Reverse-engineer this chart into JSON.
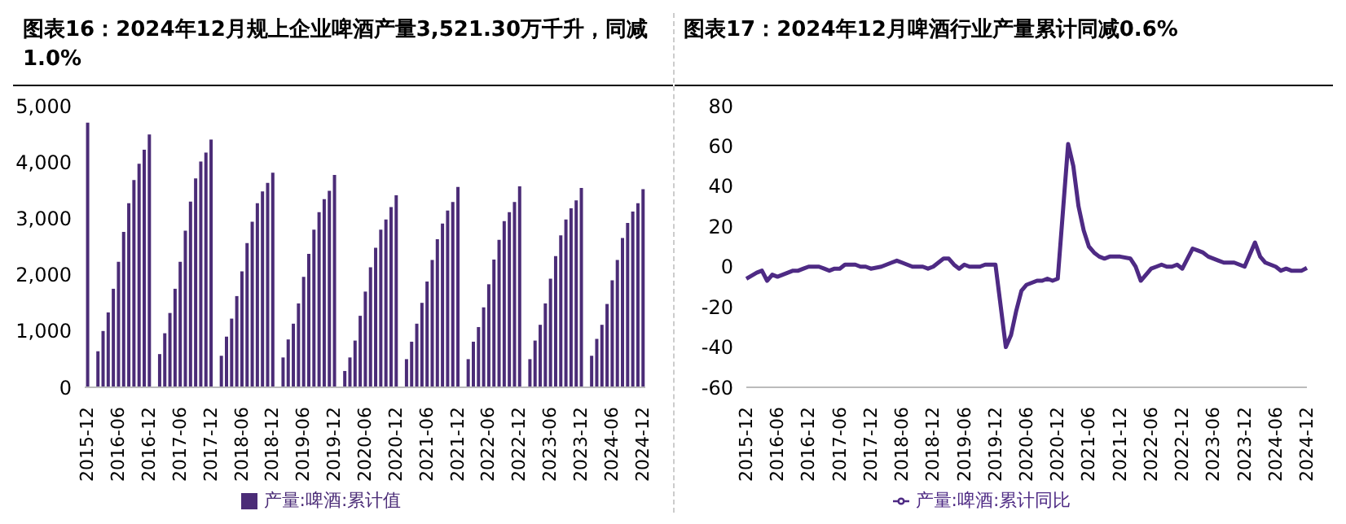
{
  "chart_data": [
    {
      "type": "bar",
      "title": "图表16：2024年12月规上企业啤酒产量3,521.30万千升，同减1.0%",
      "categories": [
        "2015-12",
        null,
        null,
        null,
        null,
        null,
        "2016-06",
        null,
        null,
        null,
        null,
        null,
        "2016-12",
        null,
        null,
        null,
        null,
        null,
        "2017-06",
        null,
        null,
        null,
        null,
        null,
        "2017-12",
        null,
        null,
        null,
        null,
        null,
        "2018-06",
        null,
        null,
        null,
        null,
        null,
        "2018-12",
        null,
        null,
        null,
        null,
        null,
        "2019-06",
        null,
        null,
        null,
        null,
        null,
        "2019-12",
        null,
        null,
        null,
        null,
        null,
        "2020-06",
        null,
        null,
        null,
        null,
        null,
        "2020-12",
        null,
        null,
        null,
        null,
        null,
        "2021-06",
        null,
        null,
        null,
        null,
        null,
        "2021-12",
        null,
        null,
        null,
        null,
        null,
        "2022-06",
        null,
        null,
        null,
        null,
        null,
        "2022-12",
        null,
        null,
        null,
        null,
        null,
        "2023-06",
        null,
        null,
        null,
        null,
        null,
        "2023-12",
        null,
        null,
        null,
        null,
        null,
        "2024-06",
        null,
        null,
        null,
        null,
        null,
        "2024-12"
      ],
      "series": [
        {
          "name": "产量:啤酒:累计值",
          "color": "#4b2c77",
          "values": [
            4700,
            null,
            640,
            1000,
            1330,
            1750,
            2230,
            2760,
            3270,
            3680,
            3970,
            4220,
            4490,
            null,
            590,
            960,
            1320,
            1750,
            2230,
            2780,
            3300,
            3710,
            4010,
            4170,
            4400,
            null,
            560,
            900,
            1220,
            1620,
            2060,
            2560,
            2940,
            3270,
            3480,
            3630,
            3810,
            null,
            530,
            850,
            1130,
            1490,
            1960,
            2370,
            2800,
            3110,
            3340,
            3490,
            3770,
            null,
            290,
            530,
            830,
            1270,
            1700,
            2130,
            2480,
            2800,
            2980,
            3200,
            3410,
            null,
            500,
            810,
            1130,
            1500,
            1880,
            2260,
            2630,
            2910,
            3140,
            3290,
            3560,
            null,
            500,
            810,
            1070,
            1420,
            1830,
            2270,
            2620,
            2950,
            3110,
            3290,
            3570,
            null,
            500,
            830,
            1110,
            1490,
            1930,
            2330,
            2700,
            2980,
            3180,
            3320,
            3540,
            null,
            560,
            860,
            1110,
            1480,
            1900,
            2260,
            2650,
            2920,
            3120,
            3270,
            3520
          ]
        }
      ],
      "ylim": [
        0,
        5000
      ],
      "yticks": [
        0,
        {
          "value": 1000,
          "label": "1,000"
        },
        {
          "value": 2000,
          "label": "2,000"
        },
        {
          "value": 3000,
          "label": "3,000"
        },
        {
          "value": 4000,
          "label": "4,000"
        },
        {
          "value": 5000,
          "label": "5,000"
        }
      ],
      "grid": false,
      "legend": "bottom"
    },
    {
      "type": "line",
      "title": "图表17：2024年12月啤酒行业产量累计同减0.6%",
      "categories": [
        "2015-12",
        null,
        null,
        null,
        null,
        null,
        "2016-06",
        null,
        null,
        null,
        null,
        null,
        "2016-12",
        null,
        null,
        null,
        null,
        null,
        "2017-06",
        null,
        null,
        null,
        null,
        null,
        "2017-12",
        null,
        null,
        null,
        null,
        null,
        "2018-06",
        null,
        null,
        null,
        null,
        null,
        "2018-12",
        null,
        null,
        null,
        null,
        null,
        "2019-06",
        null,
        null,
        null,
        null,
        null,
        "2019-12",
        null,
        null,
        null,
        null,
        null,
        "2020-06",
        null,
        null,
        null,
        null,
        null,
        "2020-12",
        null,
        null,
        null,
        null,
        null,
        "2021-06",
        null,
        null,
        null,
        null,
        null,
        "2021-12",
        null,
        null,
        null,
        null,
        null,
        "2022-06",
        null,
        null,
        null,
        null,
        null,
        "2022-12",
        null,
        null,
        null,
        null,
        null,
        "2023-06",
        null,
        null,
        null,
        null,
        null,
        "2023-12",
        null,
        null,
        null,
        null,
        null,
        "2024-06",
        null,
        null,
        null,
        null,
        null,
        "2024-12"
      ],
      "series": [
        {
          "name": "产量:啤酒:累计同比",
          "color": "#4e2a84",
          "values": [
            -6,
            null,
            -3,
            -2,
            -7,
            -4,
            -5,
            -4,
            -3,
            -2,
            -2,
            -1,
            0,
            null,
            0,
            -1,
            -2,
            -1,
            -1,
            1,
            1,
            1,
            0,
            0,
            -1,
            null,
            0,
            1,
            2,
            3,
            2,
            1,
            0,
            0,
            0,
            -1,
            0,
            null,
            4,
            4,
            1,
            -1,
            1,
            0,
            0,
            0,
            1,
            1,
            1,
            null,
            -40,
            -34,
            -22,
            -12,
            -9,
            -8,
            -7,
            -7,
            -6,
            -7,
            -6,
            null,
            61,
            50,
            30,
            18,
            10,
            7,
            5,
            4,
            5,
            5,
            5,
            null,
            4,
            0,
            -7,
            -4,
            -1,
            0,
            1,
            0,
            0,
            1,
            -1,
            null,
            9,
            8,
            7,
            5,
            4,
            3,
            2,
            2,
            2,
            1,
            0,
            null,
            12,
            5,
            2,
            1,
            0,
            -2,
            -1,
            -2,
            -2,
            -2,
            -0.6
          ]
        }
      ],
      "ylim": [
        -60,
        80
      ],
      "yticks": [
        -60,
        -40,
        -20,
        0,
        20,
        40,
        60,
        80
      ],
      "grid": false,
      "legend": "bottom",
      "line_style": "solid"
    }
  ]
}
